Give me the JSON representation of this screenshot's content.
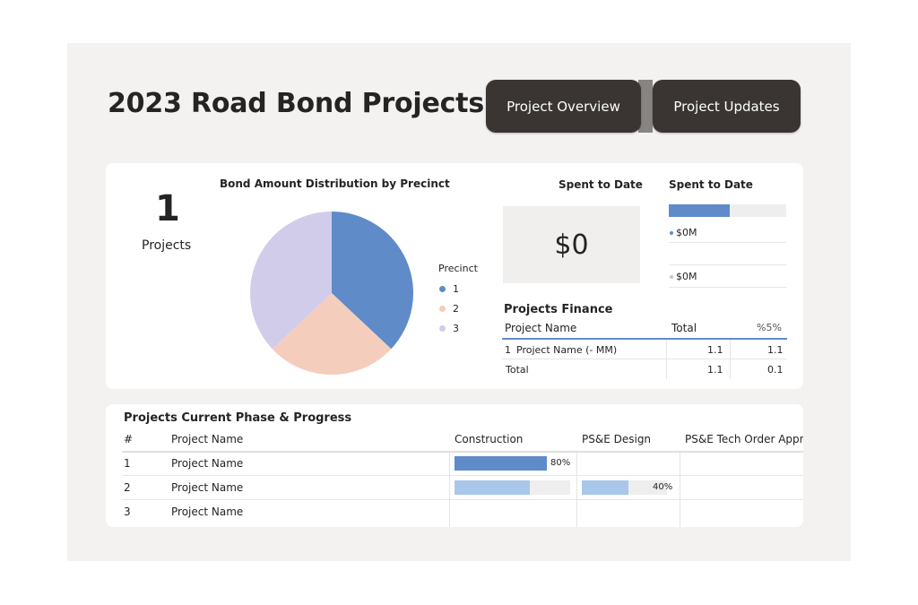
{
  "header": {
    "title": "2023 Road Bond Projects",
    "nav": [
      {
        "label": "Project Overview"
      },
      {
        "label": "Project Updates"
      }
    ]
  },
  "kpi": {
    "value": "1",
    "label": "Projects"
  },
  "pie": {
    "title": "Bond Amount Distribution by Precinct",
    "legend_title": "Precinct",
    "chart_data": {
      "type": "pie",
      "title": "Bond Amount Distribution by Precinct",
      "categories": [
        "1",
        "2",
        "3"
      ],
      "values": [
        37,
        26,
        37
      ],
      "colors": [
        "#5f8bc9",
        "#f4cdbd",
        "#d2cceb"
      ]
    }
  },
  "spent_card": {
    "title": "Spent to Date",
    "value": "$0"
  },
  "spent_bars": {
    "title": "Spent to Date",
    "fill_fraction": 0.52,
    "fill_color": "#5f8bc9",
    "rows": [
      {
        "label": "$0M",
        "dot_color": "#5f8bc9"
      },
      {
        "label": "$0M",
        "dot_color": "#c8c6c4"
      }
    ]
  },
  "finance": {
    "title": "Projects Finance",
    "headers": {
      "name": "Project Name",
      "total": "Total",
      "pct": "%5%"
    },
    "rows": [
      {
        "index": "1",
        "name": "Project Name (-  MM)",
        "total": "1.1",
        "pct": "1.1"
      }
    ],
    "total_row": {
      "label": "Total",
      "total": "1.1",
      "pct": "0.1"
    }
  },
  "progress": {
    "title": "Projects Current Phase & Progress",
    "headers": {
      "index": "#",
      "name": "Project Name",
      "construction": "Construction",
      "pse_design": "PS&E Design",
      "pse_tech": "PS&E Tech Order Appr"
    },
    "rows": [
      {
        "index": "1",
        "name": "Project Name",
        "construction": 0.8,
        "construction_label": "80%",
        "pse_design": null,
        "pse_design_label": ""
      },
      {
        "index": "2",
        "name": "Project Name",
        "construction": 0.65,
        "construction_label": "",
        "pse_design": 0.4,
        "pse_design_label": "40%"
      },
      {
        "index": "3",
        "name": "Project Name",
        "construction": null,
        "construction_label": "",
        "pse_design": null,
        "pse_design_label": ""
      }
    ],
    "colors": {
      "strong": "#5f8bc9",
      "light": "#a9c7ea"
    }
  }
}
